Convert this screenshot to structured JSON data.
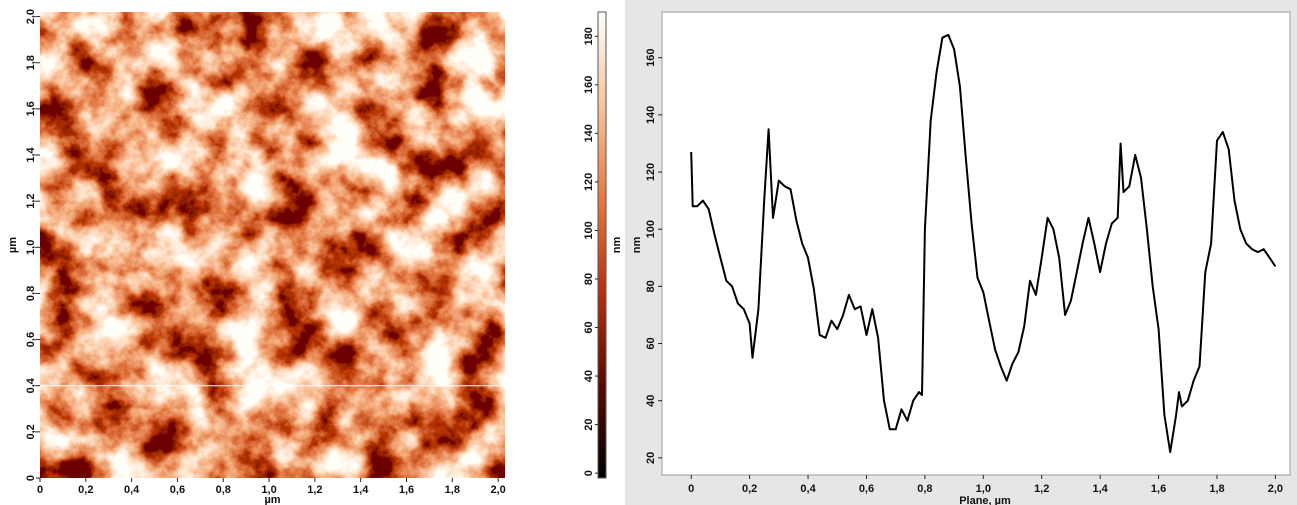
{
  "chart_data": [
    {
      "type": "heatmap",
      "xlabel": "µm",
      "ylabel": "µm",
      "xlim": [
        0,
        2.03
      ],
      "ylim": [
        0,
        2.02
      ],
      "xticks": [
        0,
        {
          "value": 0.2,
          "label": "0,2"
        },
        {
          "value": 0.4,
          "label": "0,4"
        },
        {
          "value": 0.6,
          "label": "0,6"
        },
        {
          "value": 0.8,
          "label": "0,8"
        },
        {
          "value": 1.0,
          "label": "1,0"
        },
        {
          "value": 1.2,
          "label": "1,2"
        },
        {
          "value": 1.4,
          "label": "1,4"
        },
        {
          "value": 1.6,
          "label": "1,6"
        },
        {
          "value": 1.8,
          "label": "1,8"
        },
        {
          "value": 2.0,
          "label": "2,0"
        }
      ],
      "yticks": [
        0,
        {
          "value": 0.2,
          "label": "0,2"
        },
        {
          "value": 0.4,
          "label": "0,4"
        },
        {
          "value": 0.6,
          "label": "0,6"
        },
        {
          "value": 0.8,
          "label": "0,8"
        },
        {
          "value": 1.0,
          "label": "1,0"
        },
        {
          "value": 1.2,
          "label": "1,2"
        },
        {
          "value": 1.4,
          "label": "1,4"
        },
        {
          "value": 1.6,
          "label": "1,6"
        },
        {
          "value": 1.8,
          "label": "1,8"
        },
        {
          "value": 2.0,
          "label": "2,0"
        }
      ],
      "colormap": [
        "#000000",
        "#5a0a00",
        "#b8300c",
        "#e8793f",
        "#f8c49a",
        "#ffffff"
      ],
      "colorbar": {
        "label": "nm",
        "lim": [
          -2,
          190
        ],
        "ticks": [
          0,
          20,
          40,
          60,
          80,
          100,
          120,
          140,
          160,
          180
        ]
      },
      "profile_y": 0.4
    },
    {
      "type": "line",
      "xlabel": "Plane, µm",
      "ylabel": "nm",
      "color": "#000000",
      "xlim": [
        -0.1,
        2.05
      ],
      "ylim": [
        14,
        176
      ],
      "xticks": [
        0,
        {
          "value": 0.2,
          "label": "0,2"
        },
        {
          "value": 0.4,
          "label": "0,4"
        },
        {
          "value": 0.6,
          "label": "0,6"
        },
        {
          "value": 0.8,
          "label": "0,8"
        },
        {
          "value": 1.0,
          "label": "1,0"
        },
        {
          "value": 1.2,
          "label": "1,2"
        },
        {
          "value": 1.4,
          "label": "1,4"
        },
        {
          "value": 1.6,
          "label": "1,6"
        },
        {
          "value": 1.8,
          "label": "1,8"
        },
        {
          "value": 2.0,
          "label": "2,0"
        }
      ],
      "yticks": [
        20,
        40,
        60,
        80,
        100,
        120,
        140,
        160
      ],
      "x": [
        0,
        0.005,
        0.02,
        0.04,
        0.06,
        0.08,
        0.1,
        0.12,
        0.14,
        0.16,
        0.18,
        0.2,
        0.21,
        0.23,
        0.25,
        0.265,
        0.28,
        0.3,
        0.32,
        0.34,
        0.36,
        0.38,
        0.4,
        0.42,
        0.44,
        0.46,
        0.48,
        0.5,
        0.52,
        0.54,
        0.56,
        0.58,
        0.6,
        0.62,
        0.64,
        0.66,
        0.68,
        0.7,
        0.72,
        0.74,
        0.76,
        0.78,
        0.79,
        0.8,
        0.82,
        0.84,
        0.86,
        0.88,
        0.9,
        0.92,
        0.94,
        0.96,
        0.98,
        1.0,
        1.02,
        1.04,
        1.06,
        1.08,
        1.1,
        1.12,
        1.14,
        1.16,
        1.18,
        1.2,
        1.22,
        1.24,
        1.26,
        1.28,
        1.3,
        1.32,
        1.34,
        1.36,
        1.38,
        1.4,
        1.42,
        1.44,
        1.46,
        1.47,
        1.48,
        1.5,
        1.52,
        1.54,
        1.56,
        1.58,
        1.6,
        1.62,
        1.64,
        1.66,
        1.67,
        1.68,
        1.7,
        1.72,
        1.74,
        1.76,
        1.78,
        1.8,
        1.82,
        1.84,
        1.86,
        1.88,
        1.9,
        1.92,
        1.94,
        1.96,
        1.98,
        2.0
      ],
      "values": [
        127,
        108,
        108,
        110,
        107,
        98,
        90,
        82,
        80,
        74,
        72,
        67,
        55,
        72,
        110,
        135,
        104,
        117,
        115,
        114,
        103,
        95,
        90,
        79,
        63,
        62,
        68,
        65,
        70,
        77,
        72,
        73,
        63,
        72,
        62,
        40,
        30,
        30,
        37,
        33,
        40,
        43,
        42,
        100,
        138,
        155,
        167,
        168,
        163,
        150,
        125,
        102,
        83,
        78,
        68,
        58,
        52,
        47,
        53,
        57,
        66,
        82,
        77,
        90,
        104,
        100,
        90,
        70,
        75,
        85,
        95,
        104,
        95,
        85,
        95,
        102,
        104,
        130,
        113,
        115,
        126,
        118,
        100,
        80,
        65,
        35,
        22,
        35,
        43,
        38,
        40,
        47,
        52,
        85,
        95,
        131,
        134,
        128,
        110,
        100,
        95,
        93,
        92,
        93,
        90,
        87
      ]
    }
  ]
}
